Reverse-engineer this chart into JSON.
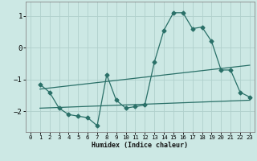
{
  "xlabel": "Humidex (Indice chaleur)",
  "ylabel": "",
  "bg_color": "#cce8e4",
  "grid_color": "#b0d0cc",
  "line_color": "#2a7068",
  "xlim": [
    -0.5,
    23.5
  ],
  "ylim": [
    -2.65,
    1.45
  ],
  "xticks": [
    0,
    1,
    2,
    3,
    4,
    5,
    6,
    7,
    8,
    9,
    10,
    11,
    12,
    13,
    14,
    15,
    16,
    17,
    18,
    19,
    20,
    21,
    22,
    23
  ],
  "yticks": [
    -2,
    -1,
    0,
    1
  ],
  "curve1_x": [
    1,
    2,
    3,
    4,
    5,
    6,
    7,
    8,
    9,
    10,
    11,
    12,
    13,
    14,
    15,
    16,
    17,
    18,
    19,
    20,
    21,
    22,
    23
  ],
  "curve1_y": [
    -1.15,
    -1.4,
    -1.9,
    -2.1,
    -2.15,
    -2.2,
    -2.45,
    -0.85,
    -1.65,
    -1.9,
    -1.85,
    -1.8,
    -0.45,
    0.55,
    1.1,
    1.1,
    0.6,
    0.65,
    0.2,
    -0.7,
    -0.7,
    -1.4,
    -1.55
  ],
  "curve2_x": [
    1,
    23
  ],
  "curve2_y": [
    -1.3,
    -0.55
  ],
  "curve3_x": [
    1,
    23
  ],
  "curve3_y": [
    -1.9,
    -1.65
  ],
  "marker": "D",
  "marker_size": 2.5,
  "linewidth": 0.9
}
